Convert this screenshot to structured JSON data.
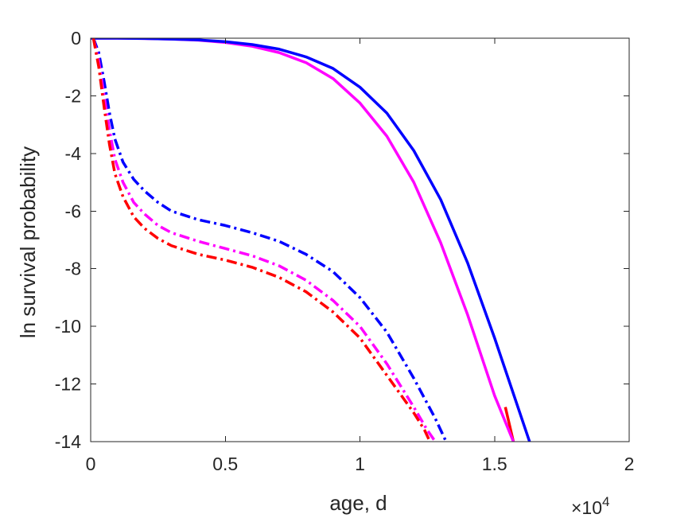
{
  "chart_data": {
    "type": "line",
    "xlabel": "age, d",
    "ylabel": "ln survival probability",
    "xlim": [
      0,
      20000
    ],
    "ylim": [
      -14,
      0
    ],
    "xticks": [
      0,
      5000,
      10000,
      15000,
      20000
    ],
    "xtick_labels": [
      "0",
      "0.5",
      "1",
      "1.5",
      "2"
    ],
    "yticks": [
      0,
      -2,
      -4,
      -6,
      -8,
      -10,
      -12,
      -14
    ],
    "ytick_labels": [
      "0",
      "-2",
      "-4",
      "-6",
      "-8",
      "-10",
      "-12",
      "-14"
    ],
    "x_multiplier": {
      "base": "×10",
      "exponent": "4"
    },
    "grid": false,
    "series": [
      {
        "color": "#0000ff",
        "style": "solid",
        "x": [
          0,
          1000,
          2000,
          3000,
          4000,
          5000,
          6000,
          7000,
          8000,
          9000,
          10000,
          11000,
          12000,
          13000,
          14000,
          15000,
          16300
        ],
        "y": [
          0,
          0,
          -0.01,
          -0.03,
          -0.06,
          -0.12,
          -0.22,
          -0.38,
          -0.65,
          -1.05,
          -1.7,
          -2.6,
          -3.9,
          -5.6,
          -7.8,
          -10.4,
          -14
        ]
      },
      {
        "color": "#ff00ff",
        "style": "solid",
        "x": [
          0,
          1000,
          2000,
          3000,
          4000,
          5000,
          6000,
          7000,
          8000,
          9000,
          10000,
          11000,
          12000,
          13000,
          14000,
          15000,
          15700
        ],
        "y": [
          0,
          0,
          -0.01,
          -0.03,
          -0.07,
          -0.15,
          -0.28,
          -0.5,
          -0.85,
          -1.4,
          -2.25,
          -3.4,
          -5.0,
          -7.1,
          -9.6,
          -12.4,
          -14
        ]
      },
      {
        "color": "#ff0000",
        "style": "solid",
        "x": [
          15400,
          15550,
          15700
        ],
        "y": [
          -12.8,
          -13.4,
          -14
        ]
      },
      {
        "color": "#0000ff",
        "style": "dashdot",
        "x": [
          100,
          300,
          500,
          700,
          900,
          1200,
          1600,
          2000,
          2500,
          3000,
          4000,
          5000,
          6000,
          7000,
          8000,
          9000,
          10000,
          11000,
          12000,
          12800,
          13200
        ],
        "y": [
          0,
          -0.5,
          -1.5,
          -2.6,
          -3.5,
          -4.3,
          -4.9,
          -5.3,
          -5.7,
          -6.0,
          -6.3,
          -6.5,
          -6.75,
          -7.05,
          -7.5,
          -8.1,
          -9.0,
          -10.2,
          -11.8,
          -13.2,
          -14
        ]
      },
      {
        "color": "#ff00ff",
        "style": "dashdot",
        "x": [
          100,
          300,
          500,
          700,
          900,
          1200,
          1600,
          2000,
          2500,
          3000,
          4000,
          5000,
          6000,
          7000,
          8000,
          9000,
          10000,
          11000,
          12000,
          12500,
          12800
        ],
        "y": [
          0,
          -0.8,
          -2.0,
          -3.2,
          -4.2,
          -5.0,
          -5.7,
          -6.1,
          -6.5,
          -6.75,
          -7.05,
          -7.3,
          -7.55,
          -7.9,
          -8.4,
          -9.1,
          -10.0,
          -11.3,
          -12.8,
          -13.6,
          -14
        ]
      },
      {
        "color": "#ff0000",
        "style": "dashdot",
        "x": [
          100,
          300,
          500,
          700,
          900,
          1200,
          1600,
          2000,
          2500,
          3000,
          4000,
          5000,
          6000,
          7000,
          8000,
          9000,
          10000,
          11000,
          12000,
          12400,
          12600
        ],
        "y": [
          0,
          -1.0,
          -2.4,
          -3.7,
          -4.7,
          -5.5,
          -6.2,
          -6.6,
          -6.95,
          -7.2,
          -7.5,
          -7.7,
          -7.95,
          -8.3,
          -8.8,
          -9.5,
          -10.4,
          -11.7,
          -13.0,
          -13.6,
          -14
        ]
      }
    ]
  }
}
